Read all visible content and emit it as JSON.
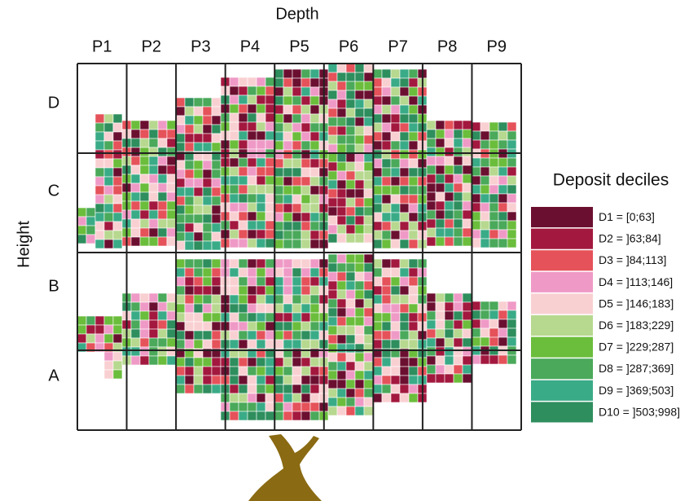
{
  "x_axis_title": "Depth",
  "columns": [
    "P1",
    "P2",
    "P3",
    "P4",
    "P5",
    "P6",
    "P7",
    "P8",
    "P9"
  ],
  "y_axis_title": "Height",
  "rows": [
    "D",
    "C",
    "B",
    "A"
  ],
  "legend": {
    "title": "Deposit deciles",
    "items": [
      {
        "label": "D1 = [0;63]",
        "color": "#6b0f30"
      },
      {
        "label": "D2 = ]63;84]",
        "color": "#a3183e"
      },
      {
        "label": "D3 = ]84;113]",
        "color": "#e5525a"
      },
      {
        "label": "D4 = ]113;146]",
        "color": "#ef9ac6"
      },
      {
        "label": "D5 = ]146;183]",
        "color": "#f9d0d2"
      },
      {
        "label": "D6 = ]183;229]",
        "color": "#b7d88f"
      },
      {
        "label": "D7 = ]229;287]",
        "color": "#6bbd3c"
      },
      {
        "label": "D8 = ]287;369]",
        "color": "#4aa95a"
      },
      {
        "label": "D9 = ]369;503]",
        "color": "#3aab87"
      },
      {
        "label": "D10 = ]503;998]",
        "color": "#2e8e5d"
      }
    ]
  }
}
